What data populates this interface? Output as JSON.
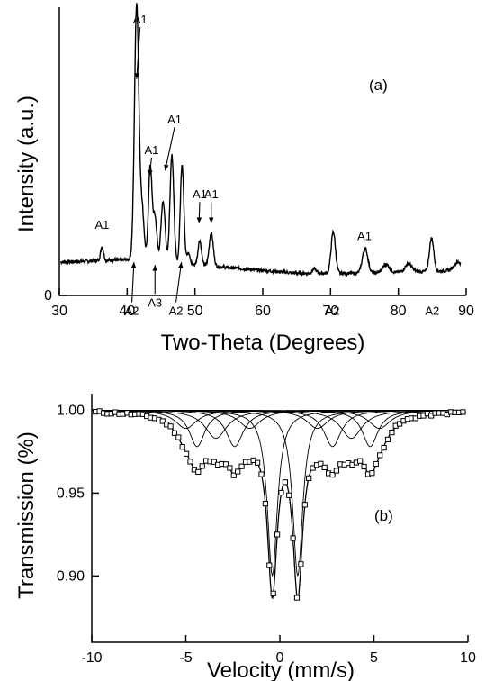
{
  "chart_data": [
    {
      "type": "line",
      "panel_label": "(a)",
      "xlabel": "Two-Theta (Degrees)",
      "ylabel": "Intensity (a.u.)",
      "xlim": [
        30,
        90
      ],
      "x_ticks": [
        "30",
        "40",
        "50",
        "60",
        "70",
        "80",
        "90"
      ],
      "y_ticks": [
        "0"
      ],
      "grid": false,
      "series": [
        {
          "baseline": 0.1,
          "background": [
            {
              "x": 30,
              "y": 0.12
            },
            {
              "x": 41,
              "y": 0.13
            },
            {
              "x": 55,
              "y": 0.1
            },
            {
              "x": 65,
              "y": 0.08
            },
            {
              "x": 75,
              "y": 0.08
            },
            {
              "x": 89,
              "y": 0.09
            }
          ],
          "peaks": [
            {
              "x": 36.3,
              "h": 0.05,
              "w": 0.22
            },
            {
              "x": 41.4,
              "h": 0.92,
              "w": 0.32
            },
            {
              "x": 42.2,
              "h": 0.18,
              "w": 0.3
            },
            {
              "x": 43.4,
              "h": 0.34,
              "w": 0.26
            },
            {
              "x": 44.1,
              "h": 0.16,
              "w": 0.28
            },
            {
              "x": 45.3,
              "h": 0.22,
              "w": 0.3
            },
            {
              "x": 46.6,
              "h": 0.39,
              "w": 0.28
            },
            {
              "x": 48.1,
              "h": 0.36,
              "w": 0.26
            },
            {
              "x": 49.0,
              "h": 0.04,
              "w": 0.25
            },
            {
              "x": 50.7,
              "h": 0.09,
              "w": 0.25
            },
            {
              "x": 52.4,
              "h": 0.12,
              "w": 0.3
            },
            {
              "x": 67.6,
              "h": 0.015,
              "w": 0.3
            },
            {
              "x": 70.4,
              "h": 0.15,
              "w": 0.32
            },
            {
              "x": 75.1,
              "h": 0.09,
              "w": 0.4
            },
            {
              "x": 78.2,
              "h": 0.03,
              "w": 0.5
            },
            {
              "x": 81.5,
              "h": 0.03,
              "w": 0.5
            },
            {
              "x": 84.9,
              "h": 0.12,
              "w": 0.32
            },
            {
              "x": 88.8,
              "h": 0.03,
              "w": 0.6
            }
          ]
        }
      ],
      "annotations": [
        {
          "text": "A1",
          "x": 36.3,
          "y_value": 0.24,
          "arrow": false
        },
        {
          "text": "A1",
          "x": 41.9,
          "y_value": 0.98,
          "arrow": true,
          "arrow_to": [
            41.4,
            0.78
          ]
        },
        {
          "text": "A1",
          "x": 43.6,
          "y_value": 0.51,
          "arrow": true,
          "arrow_to": [
            43.3,
            0.43
          ]
        },
        {
          "text": "A1",
          "x": 47.0,
          "y_value": 0.62,
          "arrow": true,
          "arrow_to": [
            45.6,
            0.45
          ]
        },
        {
          "text": "A1",
          "x": 50.7,
          "y_value": 0.35,
          "arrow": true,
          "arrow_to": [
            50.6,
            0.26
          ]
        },
        {
          "text": "A1",
          "x": 52.4,
          "y_value": 0.35,
          "arrow": true,
          "arrow_to": [
            52.4,
            0.26
          ]
        },
        {
          "text": "A1",
          "x": 75.0,
          "y_value": 0.2,
          "arrow": false
        },
        {
          "text": "A2",
          "x": 40.7,
          "y_value": -0.07,
          "arrow": true,
          "arrow_to": [
            41.0,
            0.12
          ]
        },
        {
          "text": "A3",
          "x": 44.1,
          "y_value": -0.04,
          "arrow": true,
          "arrow_to": [
            44.1,
            0.11
          ]
        },
        {
          "text": "A2",
          "x": 47.2,
          "y_value": -0.07,
          "arrow": true,
          "arrow_to": [
            48.0,
            0.12
          ]
        },
        {
          "text": "A2",
          "x": 70.3,
          "y_value": -0.07,
          "arrow": false
        },
        {
          "text": "A2",
          "x": 85.0,
          "y_value": -0.07,
          "arrow": false
        }
      ]
    },
    {
      "type": "scatter",
      "panel_label": "(b)",
      "xlabel": "Velocity (mm/s)",
      "ylabel": "Transmission (%)",
      "xlim": [
        -10,
        10
      ],
      "ylim": [
        0.86,
        1.01
      ],
      "x_ticks": [
        "-10",
        "-5",
        "0",
        "5",
        "10"
      ],
      "y_ticks": [
        {
          "value": 1.0,
          "label": "1.00"
        },
        {
          "value": 0.95,
          "label": "0.95"
        },
        {
          "value": 0.9,
          "label": "0.90"
        }
      ],
      "grid": false,
      "series": [
        {
          "marker": "open-square",
          "x_start": -9.8,
          "x_step": 0.21,
          "count": 94,
          "baseline": 1.0,
          "lines": [
            {
              "x": -4.4,
              "depth": 0.022,
              "w": 0.5
            },
            {
              "x": -2.4,
              "depth": 0.022,
              "w": 0.55
            },
            {
              "x": -0.4,
              "depth": 0.1,
              "w": 0.32
            },
            {
              "x": 0.95,
              "depth": 0.1,
              "w": 0.32
            },
            {
              "x": 2.8,
              "depth": 0.022,
              "w": 0.55
            },
            {
              "x": 4.8,
              "depth": 0.022,
              "w": 0.5
            },
            {
              "x": -3.4,
              "depth": 0.017,
              "w": 0.7
            },
            {
              "x": -1.6,
              "depth": 0.011,
              "w": 0.7
            },
            {
              "x": 2.0,
              "depth": 0.011,
              "w": 0.7
            },
            {
              "x": 3.8,
              "depth": 0.017,
              "w": 0.7
            },
            {
              "x": -5.0,
              "depth": 0.011,
              "w": 0.7
            },
            {
              "x": 5.3,
              "depth": 0.011,
              "w": 0.7
            }
          ]
        }
      ]
    }
  ]
}
